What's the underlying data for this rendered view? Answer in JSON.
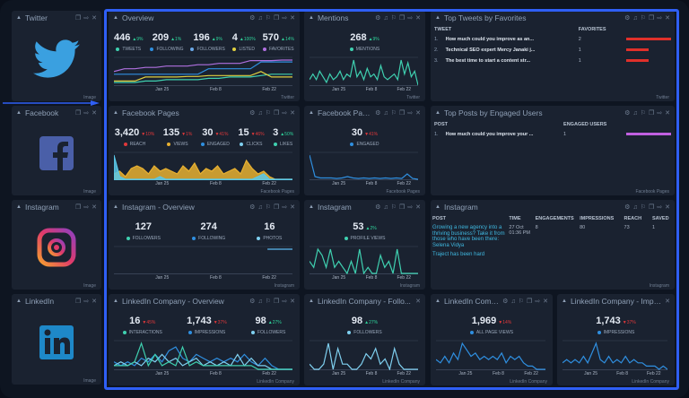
{
  "colors": {
    "accent": "#2f5ff5",
    "up": "#2fd39b",
    "down": "#e0383a"
  },
  "axis_labels": [
    "Jan 25",
    "Feb 8",
    "Feb 22"
  ],
  "widgets": [
    {
      "id": "tw-img",
      "title": "Twitter",
      "type": "image",
      "icon": "twitter-bird-icon",
      "footer": "Image"
    },
    {
      "id": "fb-img",
      "title": "Facebook",
      "type": "image",
      "icon": "facebook-logo-icon",
      "footer": "Image"
    },
    {
      "id": "ig-img",
      "title": "Instagram",
      "type": "image",
      "icon": "instagram-logo-icon",
      "footer": "Image"
    },
    {
      "id": "li-img",
      "title": "LinkedIn",
      "type": "image",
      "icon": "linkedin-logo-icon",
      "footer": "Image"
    },
    {
      "id": "tw-ov",
      "title": "Overview",
      "type": "kpi",
      "footer": "Twitter",
      "metrics": [
        {
          "value": "446",
          "delta": "9%",
          "dir": "up",
          "label": "TWEETS",
          "color": "#3fd0b0"
        },
        {
          "value": "209",
          "delta": "1%",
          "dir": "up",
          "label": "FOLLOWING",
          "color": "#2f8fe0"
        },
        {
          "value": "196",
          "delta": "9%",
          "dir": "up",
          "label": "FOLLOWERS",
          "color": "#6aa8e8"
        },
        {
          "value": "4",
          "delta": "100%",
          "dir": "up",
          "label": "LISTED",
          "color": "#e0d040"
        },
        {
          "value": "570",
          "delta": "14%",
          "dir": "up",
          "label": "FAVORITES",
          "color": "#b070e0"
        }
      ],
      "series": [
        {
          "color": "#b070e0",
          "values": [
            5,
            6,
            6,
            6.5,
            6.5,
            7,
            7,
            7,
            7.5,
            7.5,
            8,
            8,
            8,
            9,
            9,
            9,
            9.2,
            9.2
          ]
        },
        {
          "color": "#2f8fe0",
          "values": [
            4,
            4,
            4,
            4,
            4,
            4,
            4,
            4,
            4,
            6,
            6,
            6,
            6,
            6,
            8.5,
            8.5,
            8.5,
            8.5
          ]
        },
        {
          "color": "#3fd0b0",
          "values": [
            1,
            1,
            1,
            1.5,
            1.5,
            2,
            2,
            2,
            2,
            2.5,
            2.5,
            3,
            3,
            3,
            3.5,
            4,
            4,
            4
          ]
        },
        {
          "color": "#e0d040",
          "values": [
            1.5,
            1.5,
            1.5,
            3,
            3,
            3,
            3,
            3.2,
            3.2,
            3.5,
            3.5,
            3.5,
            3.5,
            3.5,
            5,
            3,
            3,
            3
          ]
        }
      ]
    },
    {
      "id": "tw-men",
      "title": "Mentions",
      "type": "kpi",
      "footer": "Twitter",
      "metrics": [
        {
          "value": "268",
          "delta": "9%",
          "dir": "up",
          "label": "MENTIONS",
          "color": "#3fd0b0"
        }
      ],
      "series": [
        {
          "color": "#3fd0b0",
          "values": [
            2,
            4,
            2,
            5,
            3,
            1,
            4,
            2,
            3,
            5,
            2,
            4,
            3,
            9,
            3,
            5,
            2,
            6,
            3,
            4,
            2,
            7,
            3,
            2,
            3,
            4,
            2,
            9,
            4,
            8,
            3,
            5,
            0
          ]
        }
      ]
    },
    {
      "id": "tw-top",
      "title": "Top Tweets by Favorites",
      "type": "bars",
      "footer": "Twitter",
      "headers": [
        "TWEET",
        "FAVORITES"
      ],
      "bar_color": "#e0302a",
      "rows": [
        {
          "rank": "1.",
          "text": "How much could you improve as an...",
          "value": 2
        },
        {
          "rank": "2.",
          "text": "Technical SEO expert Mercy Janaki j...",
          "value": 1
        },
        {
          "rank": "3.",
          "text": "The best time to start a content str...",
          "value": 1
        }
      ],
      "max": 2
    },
    {
      "id": "fb-ov",
      "title": "Facebook Pages",
      "type": "kpi",
      "footer": "Facebook Pages",
      "metrics": [
        {
          "value": "3,420",
          "delta": "10%",
          "dir": "down",
          "label": "REACH",
          "color": "#e0383a"
        },
        {
          "value": "135",
          "delta": "1%",
          "dir": "down",
          "label": "VIEWS",
          "color": "#e8b030"
        },
        {
          "value": "30",
          "delta": "41%",
          "dir": "down",
          "label": "ENGAGED",
          "color": "#2f8fe0"
        },
        {
          "value": "15",
          "delta": "46%",
          "dir": "down",
          "label": "CLICKS",
          "color": "#7fd0f0"
        },
        {
          "value": "3",
          "delta": "50%",
          "dir": "up",
          "label": "LIKES",
          "color": "#3fd0b0"
        }
      ],
      "series": [
        {
          "color": "#e8b030",
          "area": true,
          "values": [
            2,
            3,
            1,
            4,
            5,
            4,
            2,
            5,
            3,
            4,
            3,
            2,
            5,
            3,
            6,
            2,
            4,
            3,
            5,
            2,
            3,
            4,
            2,
            7,
            4,
            2,
            3,
            1,
            0,
            0,
            0,
            0
          ]
        },
        {
          "color": "#5ac8e8",
          "area": true,
          "values": [
            9,
            1,
            0,
            0,
            0,
            0,
            0,
            0,
            1,
            0,
            0,
            0,
            0,
            0,
            0,
            0,
            0,
            0,
            0,
            0,
            0,
            0,
            0,
            0,
            0,
            1,
            2,
            0,
            0,
            0,
            0,
            0
          ]
        }
      ]
    },
    {
      "id": "fb-eng",
      "title": "Facebook Pages",
      "type": "kpi",
      "footer": "Facebook Pages",
      "metrics": [
        {
          "value": "30",
          "delta": "41%",
          "dir": "down",
          "label": "ENGAGED",
          "color": "#2f8fe0"
        }
      ],
      "series": [
        {
          "color": "#2f8fe0",
          "values": [
            9,
            1,
            0.5,
            0.5,
            0.5,
            0.3,
            0.5,
            1,
            0.5,
            0.3,
            0.5,
            0.3,
            0.5,
            0.3,
            0.5,
            0.3,
            0.5,
            0.3,
            2,
            0.3,
            0
          ]
        }
      ]
    },
    {
      "id": "fb-top",
      "title": "Top Posts by Engaged Users",
      "type": "bars",
      "footer": "Facebook Pages",
      "headers": [
        "POST",
        "ENGAGED USERS"
      ],
      "bar_color": "#c060e0",
      "rows": [
        {
          "rank": "1.",
          "text": "How much could you improve your ...",
          "value": 1
        }
      ],
      "max": 1
    },
    {
      "id": "ig-ov",
      "title": "Instagram - Overview",
      "type": "kpi",
      "footer": "Instagram",
      "metrics": [
        {
          "value": "127",
          "label": "FOLLOWERS",
          "color": "#3fd0b0"
        },
        {
          "value": "274",
          "label": "FOLLOWING",
          "color": "#2f8fe0"
        },
        {
          "value": "16",
          "label": "PHOTOS",
          "color": "#7fd0f0"
        }
      ],
      "series": [
        {
          "color": "#5ab8f0",
          "start": 0.86,
          "values": [
            5,
            5,
            5,
            5
          ]
        }
      ]
    },
    {
      "id": "ig-pv",
      "title": "Instagram",
      "type": "kpi",
      "footer": "Instagram",
      "metrics": [
        {
          "value": "53",
          "delta": "2%",
          "dir": "up",
          "label": "PROFILE VIEWS",
          "color": "#3fd0b0"
        }
      ],
      "series": [
        {
          "color": "#3fd0b0",
          "values": [
            2,
            1,
            4,
            3,
            1,
            4,
            1,
            2,
            1,
            0,
            2,
            0,
            4,
            0,
            1,
            0,
            0,
            3,
            1,
            2,
            0,
            4,
            0,
            0,
            0,
            0,
            0
          ]
        }
      ]
    },
    {
      "id": "ig-tab",
      "title": "Instagram",
      "type": "igtable",
      "footer": "Instagram",
      "headers": [
        "POST",
        "TIME",
        "ENGAGEMENTS",
        "IMPRESSIONS",
        "REACH",
        "SAVED"
      ],
      "rows": [
        {
          "post": "Growing a new agency into a thriving business? Take it from those who have been there: Selena Vidya",
          "time": "27 Oct 01:36 PM",
          "engagements": "8",
          "impressions": "80",
          "reach": "73",
          "saved": "1"
        }
      ],
      "next_post": "Traject has been hard"
    },
    {
      "id": "li-ov",
      "title": "LinkedIn Company - Overview",
      "type": "kpi",
      "footer": "LinkedIn Company",
      "metrics": [
        {
          "value": "16",
          "delta": "45%",
          "dir": "down",
          "label": "INTERACTIONS",
          "color": "#3fd0b0"
        },
        {
          "value": "1,743",
          "delta": "37%",
          "dir": "down",
          "label": "IMPRESSIONS",
          "color": "#2f8fe0"
        },
        {
          "value": "98",
          "delta": "27%",
          "dir": "up",
          "label": "FOLLOWERS",
          "color": "#7fd0f0"
        }
      ],
      "series": [
        {
          "color": "#2f8fe0",
          "values": [
            2,
            1,
            2,
            1,
            3,
            2,
            4,
            2,
            5,
            6,
            3,
            2,
            4,
            3,
            2,
            3,
            2,
            3,
            2,
            4,
            2,
            1,
            3,
            1,
            0,
            0,
            0
          ]
        },
        {
          "color": "#7fd0f0",
          "values": [
            1,
            2,
            1,
            2,
            1,
            3,
            2,
            4,
            2,
            3,
            1,
            2,
            3,
            1,
            2,
            1,
            2,
            1,
            4,
            1,
            3,
            1,
            1,
            0,
            0,
            0,
            0
          ]
        },
        {
          "color": "#3fd0b0",
          "values": [
            1,
            1,
            1,
            2,
            7,
            1,
            4,
            1,
            2,
            1,
            6,
            1,
            2,
            1,
            1,
            1,
            1,
            1,
            1,
            1,
            1,
            0,
            0,
            0,
            0,
            0,
            0
          ]
        }
      ]
    },
    {
      "id": "li-fol",
      "title": "LinkedIn Company - Follo...",
      "type": "kpi",
      "footer": "LinkedIn Company",
      "metrics": [
        {
          "value": "98",
          "delta": "27%",
          "dir": "up",
          "label": "FOLLOWERS",
          "color": "#7fd0f0"
        }
      ],
      "series": [
        {
          "color": "#7fd0f0",
          "values": [
            1,
            0,
            0,
            1,
            5,
            0,
            4,
            1,
            1,
            0,
            0,
            1,
            3,
            2,
            4,
            1,
            2,
            0,
            4,
            1,
            0,
            0,
            0,
            0
          ]
        }
      ]
    },
    {
      "id": "li-pv",
      "title": "LinkedIn Company",
      "type": "kpi",
      "footer": "LinkedIn Company",
      "metrics": [
        {
          "value": "1,969",
          "delta": "14%",
          "dir": "down",
          "label": "ALL PAGE VIEWS",
          "color": "#2f8fe0"
        }
      ],
      "series": [
        {
          "color": "#2f8fe0",
          "values": [
            3,
            2,
            4,
            2,
            5,
            3,
            8,
            6,
            4,
            5,
            3,
            4,
            3,
            4,
            3,
            5,
            2,
            4,
            3,
            4,
            2,
            1,
            1,
            0,
            0,
            0
          ]
        }
      ]
    },
    {
      "id": "li-imp",
      "title": "LinkedIn Company - Impre...",
      "type": "kpi",
      "footer": "LinkedIn Company",
      "metrics": [
        {
          "value": "1,743",
          "delta": "37%",
          "dir": "down",
          "label": "IMPRESSIONS",
          "color": "#2f8fe0"
        }
      ],
      "series": [
        {
          "color": "#2f8fe0",
          "values": [
            2,
            3,
            2,
            3,
            2,
            4,
            2,
            5,
            8,
            3,
            2,
            4,
            2,
            3,
            2,
            4,
            2,
            3,
            2,
            2,
            1,
            1,
            1,
            0,
            1,
            0
          ]
        }
      ]
    }
  ]
}
